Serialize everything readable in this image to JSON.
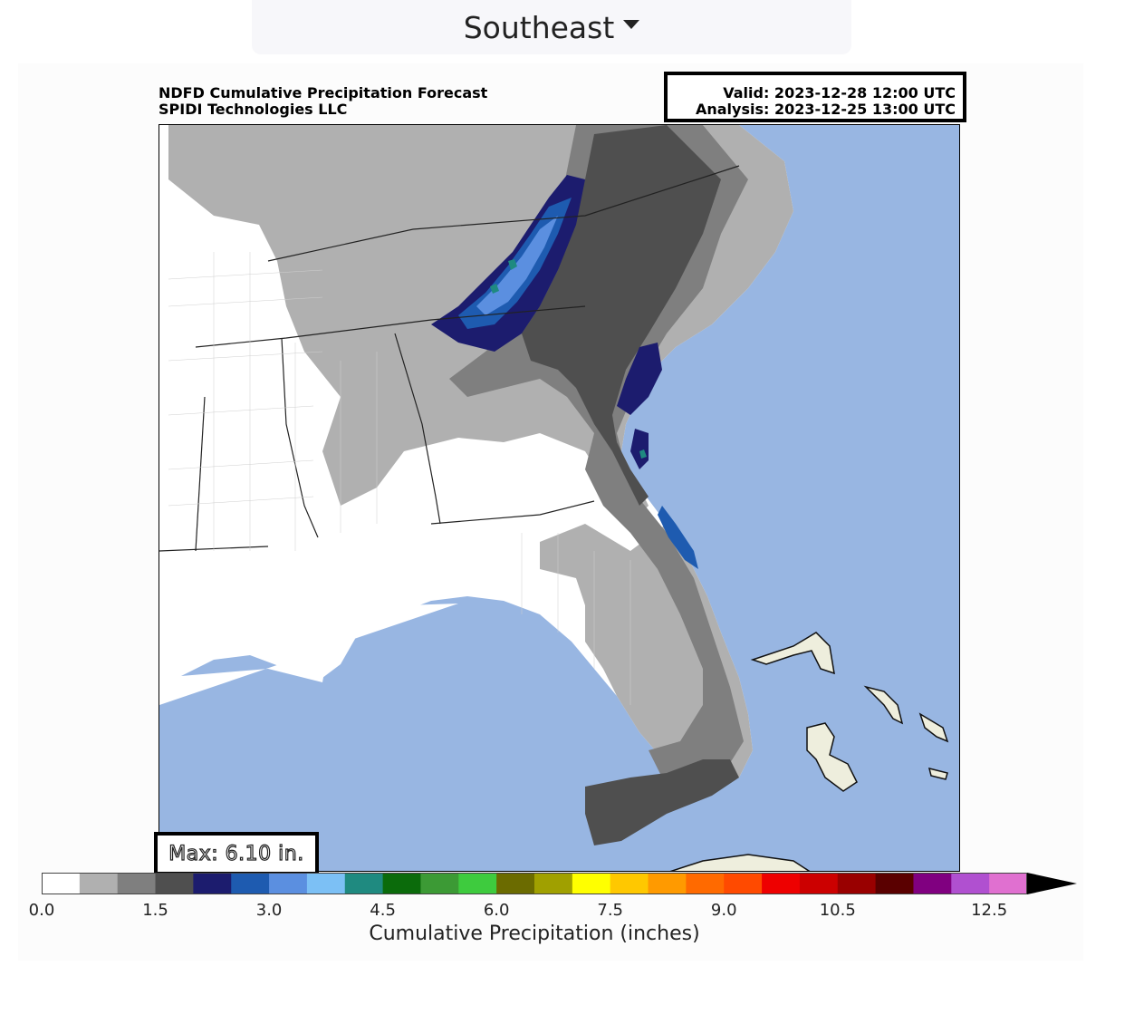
{
  "region_selector": {
    "label": "Southeast",
    "icon": "caret-down-icon"
  },
  "map": {
    "title_line1": "NDFD Cumulative Precipitation Forecast",
    "title_line2": "SPIDI Technologies LLC",
    "valid": "Valid: 2023-12-28 12:00 UTC",
    "analysis": "Analysis: 2023-12-25 13:00 UTC",
    "max_label": "Max: 6.10 in.",
    "ocean_color": "#98b6e2",
    "land_color": "#ffffff"
  },
  "colorbar": {
    "label": "Cumulative Precipitation (inches)",
    "ticks": [
      "0.0",
      "1.5",
      "3.0",
      "4.5",
      "6.0",
      "7.5",
      "9.0",
      "10.5",
      "12.5"
    ],
    "tick_values": [
      0.0,
      1.5,
      3.0,
      4.5,
      6.0,
      7.5,
      9.0,
      10.5,
      12.5
    ],
    "min": 0,
    "max": 13,
    "colors": [
      "#ffffff",
      "#b0b0b0",
      "#7f7f7f",
      "#4f4f4f",
      "#1c1c6e",
      "#1e5bb0",
      "#5b8fe0",
      "#7cc0f5",
      "#1f8a80",
      "#0b6b0b",
      "#3c9a35",
      "#3ecb3e",
      "#6b6b00",
      "#a0a000",
      "#ffff00",
      "#ffc800",
      "#ff9a00",
      "#ff6a00",
      "#ff4a00",
      "#ee0000",
      "#cc0000",
      "#990000",
      "#5a0000",
      "#800080",
      "#b050d0",
      "#e070d0"
    ],
    "extend": "max",
    "arrow_color": "#000000"
  }
}
